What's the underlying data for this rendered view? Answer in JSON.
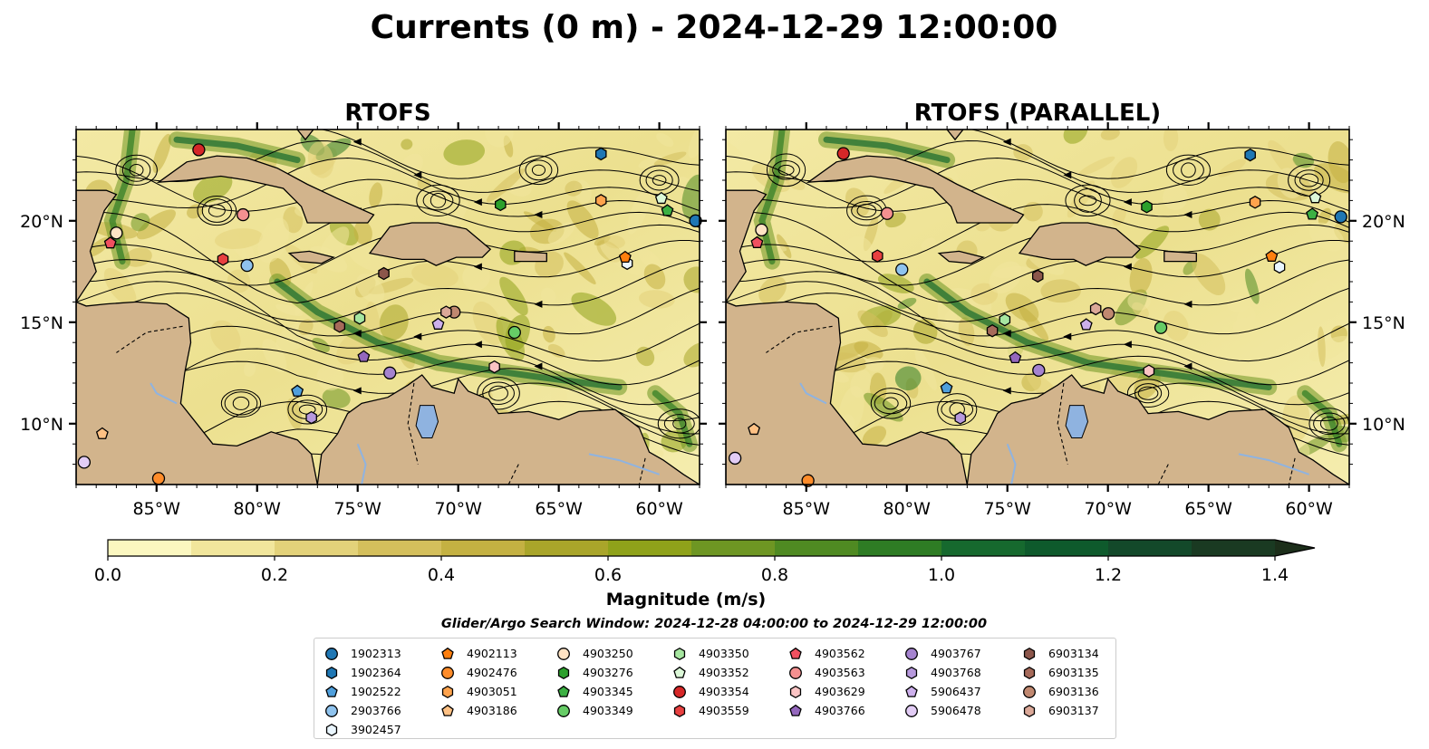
{
  "figure": {
    "title": "Currents (0 m) - 2024-12-29 12:00:00",
    "panels": [
      {
        "title": "RTOFS"
      },
      {
        "title": "RTOFS (PARALLEL)"
      }
    ],
    "x_ticks": [
      "85°W",
      "80°W",
      "75°W",
      "70°W",
      "65°W",
      "60°W"
    ],
    "y_ticks": [
      "20°N",
      "15°N",
      "10°N"
    ],
    "colorbar": {
      "label": "Magnitude (m/s)",
      "ticks": [
        "0.0",
        "0.2",
        "0.4",
        "0.6",
        "0.8",
        "1.0",
        "1.2",
        "1.4"
      ],
      "colors": [
        "#fbf7c0",
        "#f1e69c",
        "#e3d27a",
        "#d4bf5c",
        "#c4b142",
        "#a9a52a",
        "#8fa21a",
        "#6e9623",
        "#4f8a22",
        "#2e7c24",
        "#16692e",
        "#0e5a2c",
        "#13492a",
        "#1a3a22",
        "#1c2e1a"
      ]
    },
    "search_window": "Glider/Argo Search Window: 2024-12-28 04:00:00 to 2024-12-29 12:00:00"
  },
  "chart_data": {
    "type": "streamline-map",
    "title": "Currents (0 m) - 2024-12-29 12:00:00",
    "colorbar_label": "Magnitude (m/s)",
    "colorbar_range": [
      0.0,
      1.5
    ],
    "xlim": [
      -89,
      -58
    ],
    "ylim": [
      7,
      24.5
    ],
    "land_color": "#d2b48c",
    "floats": [
      {
        "id": "1902313",
        "color": "#1f77b4",
        "marker": "circle",
        "lon": -58.2,
        "lat": 20.0
      },
      {
        "id": "1902364",
        "color": "#1f77b4",
        "marker": "hexagon",
        "lon": -62.9,
        "lat": 23.3
      },
      {
        "id": "1902522",
        "color": "#4f9fdc",
        "marker": "pentagon",
        "lon": -78.0,
        "lat": 11.6
      },
      {
        "id": "2903766",
        "color": "#8fc3ee",
        "marker": "circle",
        "lon": -80.5,
        "lat": 17.8
      },
      {
        "id": "3902457",
        "color": "#eaf6ff",
        "marker": "hexagon",
        "lon": -61.6,
        "lat": 17.9
      },
      {
        "id": "4902113",
        "color": "#ff7f0e",
        "marker": "pentagon",
        "lon": -61.7,
        "lat": 18.2
      },
      {
        "id": "4902476",
        "color": "#ff8c2a",
        "marker": "circle",
        "lon": -84.9,
        "lat": 7.3
      },
      {
        "id": "4903051",
        "color": "#ffa34d",
        "marker": "hexagon",
        "lon": -62.9,
        "lat": 21.0
      },
      {
        "id": "4903186",
        "color": "#ffc184",
        "marker": "pentagon",
        "lon": -87.7,
        "lat": 9.5
      },
      {
        "id": "4903250",
        "color": "#ffe3c4",
        "marker": "circle",
        "lon": -87.0,
        "lat": 19.4
      },
      {
        "id": "4903276",
        "color": "#2ca02c",
        "marker": "hexagon",
        "lon": -67.9,
        "lat": 20.8
      },
      {
        "id": "4903345",
        "color": "#3cb043",
        "marker": "pentagon",
        "lon": -59.6,
        "lat": 20.5
      },
      {
        "id": "4903349",
        "color": "#66cc66",
        "marker": "circle",
        "lon": -67.2,
        "lat": 14.5
      },
      {
        "id": "4903350",
        "color": "#a6e6a0",
        "marker": "hexagon",
        "lon": -74.9,
        "lat": 15.2
      },
      {
        "id": "4903352",
        "color": "#dcf8d8",
        "marker": "pentagon",
        "lon": -59.9,
        "lat": 21.1
      },
      {
        "id": "4903354",
        "color": "#d62728",
        "marker": "circle",
        "lon": -82.9,
        "lat": 23.5
      },
      {
        "id": "4903559",
        "color": "#e84040",
        "marker": "hexagon",
        "lon": -81.7,
        "lat": 18.1
      },
      {
        "id": "4903562",
        "color": "#f05060",
        "marker": "pentagon",
        "lon": -87.3,
        "lat": 18.9
      },
      {
        "id": "4903563",
        "color": "#f49090",
        "marker": "circle",
        "lon": -80.7,
        "lat": 20.3
      },
      {
        "id": "4903629",
        "color": "#fbc4c4",
        "marker": "hexagon",
        "lon": -68.2,
        "lat": 12.8
      },
      {
        "id": "4903766",
        "color": "#9467bd",
        "marker": "pentagon",
        "lon": -74.7,
        "lat": 13.3
      },
      {
        "id": "4903767",
        "color": "#a583cf",
        "marker": "circle",
        "lon": -73.4,
        "lat": 12.5
      },
      {
        "id": "4903768",
        "color": "#b799dd",
        "marker": "hexagon",
        "lon": -77.3,
        "lat": 10.3
      },
      {
        "id": "5906437",
        "color": "#cdb0ec",
        "marker": "pentagon",
        "lon": -71.0,
        "lat": 14.9
      },
      {
        "id": "5906478",
        "color": "#e2ccf5",
        "marker": "circle",
        "lon": -88.6,
        "lat": 8.1
      },
      {
        "id": "6903134",
        "color": "#8c564b",
        "marker": "hexagon",
        "lon": -73.7,
        "lat": 17.4
      },
      {
        "id": "6903135",
        "color": "#a66a5a",
        "marker": "hexagon",
        "lon": -75.9,
        "lat": 14.8
      },
      {
        "id": "6903136",
        "color": "#c08870",
        "marker": "circle",
        "lon": -70.2,
        "lat": 15.5
      },
      {
        "id": "6903137",
        "color": "#dba898",
        "marker": "hexagon",
        "lon": -70.6,
        "lat": 15.5
      }
    ]
  }
}
